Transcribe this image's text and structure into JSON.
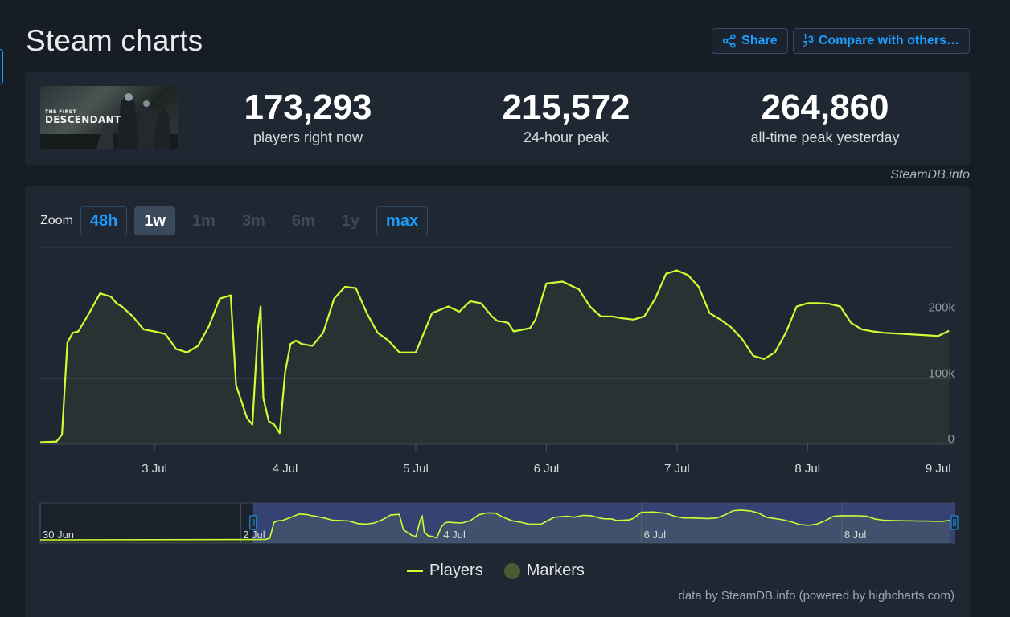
{
  "page": {
    "title": "Steam charts"
  },
  "header": {
    "share_label": "Share",
    "compare_label": "Compare with others…",
    "compare_icon_top": "1",
    "compare_icon_bottom": "2",
    "compare_icon_side": "3"
  },
  "game": {
    "logo_line1": "THE FIRST",
    "logo_line2": "DESCENDANT"
  },
  "stats": [
    {
      "value": "173,293",
      "label": "players right now"
    },
    {
      "value": "215,572",
      "label": "24-hour peak"
    },
    {
      "value": "264,860",
      "label": "all-time peak yesterday"
    }
  ],
  "watermark": "SteamDB.info",
  "zoom": {
    "label": "Zoom",
    "buttons": [
      {
        "label": "48h",
        "state": "available"
      },
      {
        "label": "1w",
        "state": "selected"
      },
      {
        "label": "1m",
        "state": "disabled"
      },
      {
        "label": "3m",
        "state": "disabled"
      },
      {
        "label": "6m",
        "state": "disabled"
      },
      {
        "label": "1y",
        "state": "disabled"
      },
      {
        "label": "max",
        "state": "available"
      }
    ]
  },
  "legend": {
    "players": "Players",
    "markers": "Markers"
  },
  "credits": "data by SteamDB.info (powered by highcharts.com)",
  "colors": {
    "line": "#ccff33",
    "accent": "#1a9fff",
    "navigator_selection": "#3d4f8a"
  },
  "chart_data": {
    "type": "line",
    "series": [
      {
        "name": "Players",
        "x": [
          "2024-07-02 03:00",
          "2024-07-02 06:00",
          "2024-07-02 07:00",
          "2024-07-02 08:00",
          "2024-07-02 09:00",
          "2024-07-02 10:00",
          "2024-07-02 12:00",
          "2024-07-02 14:00",
          "2024-07-02 16:00",
          "2024-07-02 17:00",
          "2024-07-02 18:00",
          "2024-07-02 20:00",
          "2024-07-02 22:00",
          "2024-07-03 00:00",
          "2024-07-03 02:00",
          "2024-07-03 04:00",
          "2024-07-03 06:00",
          "2024-07-03 08:00",
          "2024-07-03 10:00",
          "2024-07-03 12:00",
          "2024-07-03 14:00",
          "2024-07-03 15:00",
          "2024-07-03 17:00",
          "2024-07-03 18:00",
          "2024-07-03 19:00",
          "2024-07-03 19:30",
          "2024-07-03 20:00",
          "2024-07-03 21:00",
          "2024-07-03 22:00",
          "2024-07-03 23:00",
          "2024-07-04 00:00",
          "2024-07-04 01:00",
          "2024-07-04 02:00",
          "2024-07-04 03:00",
          "2024-07-04 05:00",
          "2024-07-04 07:00",
          "2024-07-04 09:00",
          "2024-07-04 11:00",
          "2024-07-04 13:00",
          "2024-07-04 15:00",
          "2024-07-04 17:00",
          "2024-07-04 19:00",
          "2024-07-04 21:00",
          "2024-07-05 00:00",
          "2024-07-05 03:00",
          "2024-07-05 06:00",
          "2024-07-05 08:00",
          "2024-07-05 10:00",
          "2024-07-05 12:00",
          "2024-07-05 14:00",
          "2024-07-05 15:00",
          "2024-07-05 16:00",
          "2024-07-05 17:00",
          "2024-07-05 18:00",
          "2024-07-05 21:00",
          "2024-07-05 22:00",
          "2024-07-06 00:00",
          "2024-07-06 03:00",
          "2024-07-06 06:00",
          "2024-07-06 08:00",
          "2024-07-06 10:00",
          "2024-07-06 12:00",
          "2024-07-06 14:00",
          "2024-07-06 16:00",
          "2024-07-06 18:00",
          "2024-07-06 20:00",
          "2024-07-06 22:00",
          "2024-07-07 00:00",
          "2024-07-07 02:00",
          "2024-07-07 04:00",
          "2024-07-07 06:00",
          "2024-07-07 08:00",
          "2024-07-07 10:00",
          "2024-07-07 12:00",
          "2024-07-07 14:00",
          "2024-07-07 16:00",
          "2024-07-07 18:00",
          "2024-07-07 20:00",
          "2024-07-07 22:00",
          "2024-07-08 00:00",
          "2024-07-08 02:00",
          "2024-07-08 04:00",
          "2024-07-08 06:00",
          "2024-07-08 08:00",
          "2024-07-08 10:00",
          "2024-07-08 12:00",
          "2024-07-08 14:00",
          "2024-07-08 16:00",
          "2024-07-08 18:00",
          "2024-07-08 20:00",
          "2024-07-08 22:00",
          "2024-07-09 00:00",
          "2024-07-09 02:00"
        ],
        "values": [
          3000,
          4000,
          15000,
          155000,
          170000,
          172000,
          200000,
          230000,
          225000,
          215000,
          210000,
          195000,
          175000,
          172000,
          168000,
          145000,
          140000,
          150000,
          180000,
          222000,
          227000,
          90000,
          40000,
          30000,
          175000,
          210000,
          70000,
          35000,
          30000,
          17000,
          110000,
          153000,
          158000,
          153000,
          150000,
          170000,
          222000,
          240000,
          238000,
          200000,
          170000,
          158000,
          140000,
          140000,
          200000,
          210000,
          202000,
          218000,
          215000,
          195000,
          188000,
          187000,
          185000,
          172000,
          177000,
          190000,
          245000,
          248000,
          236000,
          210000,
          195000,
          195000,
          192000,
          190000,
          195000,
          222000,
          260000,
          265000,
          258000,
          240000,
          200000,
          190000,
          178000,
          160000,
          135000,
          130000,
          140000,
          170000,
          210000,
          215000,
          215000,
          214000,
          210000,
          185000,
          175000,
          172000,
          170000,
          169000,
          168000,
          167000,
          166000,
          165000,
          173000
        ]
      }
    ],
    "x_tick_labels": [
      "3 Jul",
      "4 Jul",
      "5 Jul",
      "6 Jul",
      "7 Jul",
      "8 Jul",
      "9 Jul"
    ],
    "x_range": [
      "2024-07-02 03:00",
      "2024-07-09 03:00"
    ],
    "y_tick_labels": [
      "0",
      "100k",
      "200k"
    ],
    "ylim": [
      0,
      300000
    ],
    "grid": true,
    "legend_position": "bottom-center",
    "navigator": {
      "tick_labels": [
        "30 Jun",
        "2 Jul",
        "4 Jul",
        "6 Jul",
        "8 Jul"
      ],
      "range": [
        "2024-06-30 00:00",
        "2024-07-09 03:00"
      ],
      "selected_range": [
        "2024-07-02 03:00",
        "2024-07-09 03:00"
      ]
    }
  }
}
